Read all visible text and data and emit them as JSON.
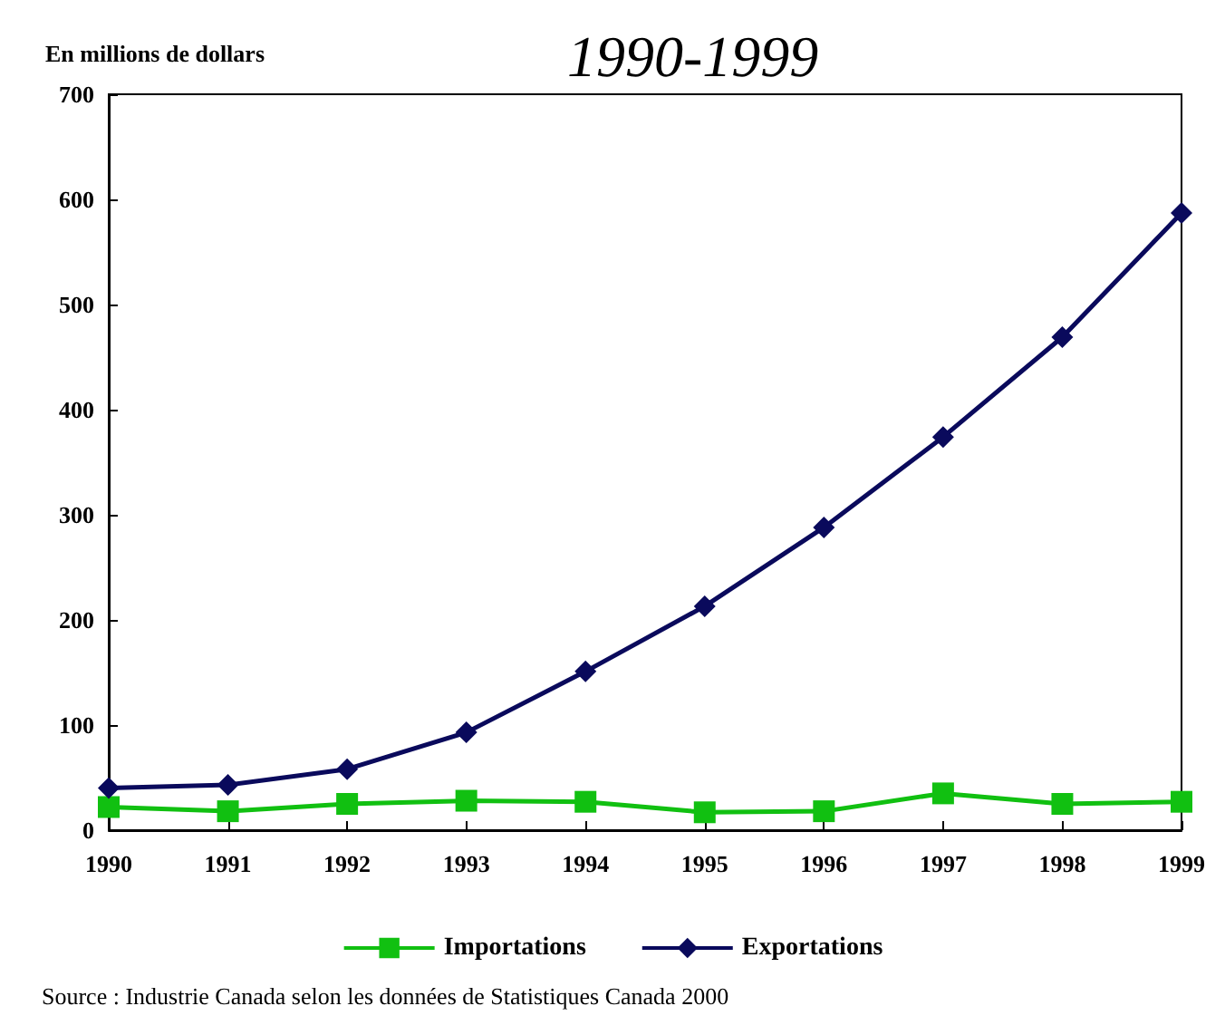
{
  "chart_data": {
    "type": "line",
    "title": "1990-1999",
    "ylabel": "En millions de dollars",
    "categories": [
      "1990",
      "1991",
      "1992",
      "1993",
      "1994",
      "1995",
      "1996",
      "1997",
      "1998",
      "1999"
    ],
    "series": [
      {
        "name": "Importations",
        "color": "#11c011",
        "marker": "square",
        "values": [
          22,
          18,
          25,
          28,
          27,
          17,
          18,
          35,
          25,
          27
        ]
      },
      {
        "name": "Exportations",
        "color": "#0a0a5c",
        "marker": "diamond",
        "values": [
          40,
          43,
          58,
          93,
          151,
          213,
          288,
          374,
          469,
          587
        ]
      }
    ],
    "ylim": [
      0,
      700
    ],
    "yticks": [
      0,
      100,
      200,
      300,
      400,
      500,
      600,
      700
    ],
    "grid": false,
    "legend": "bottom",
    "line_style": "solid",
    "annotations": [
      "Source : Industrie Canada selon les données de Statistiques Canada 2000"
    ]
  }
}
